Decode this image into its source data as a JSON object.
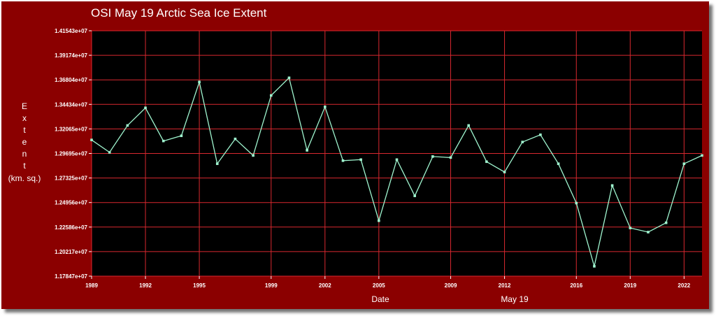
{
  "chart_data": {
    "type": "line",
    "title": "OSI May 19  Arctic Sea Ice Extent",
    "xlabel": "Date",
    "subtitle": "May 19",
    "ylabel_letters": [
      "E",
      "x",
      "t",
      "e",
      "n",
      "t"
    ],
    "ylabel_units": "(km. sq.)",
    "xlim": [
      1989,
      2023
    ],
    "ylim": [
      11784700,
      14154300
    ],
    "y_ticks": [
      11784700,
      12021700,
      12258600,
      12495600,
      12732500,
      12969500,
      13206500,
      13443400,
      13680400,
      13917400,
      14154300
    ],
    "y_tick_labels": [
      "1.17847e+07",
      "1.20217e+07",
      "1.22586e+07",
      "1.24956e+07",
      "1.27325e+07",
      "1.29695e+07",
      "1.32065e+07",
      "1.34434e+07",
      "1.36804e+07",
      "1.39174e+07",
      "1.41543e+07"
    ],
    "x_ticks": [
      1989,
      1992,
      1995,
      1999,
      2002,
      2005,
      2009,
      2012,
      2016,
      2019,
      2022
    ],
    "grid": true,
    "series_color": "#9ff5cf",
    "x": [
      1989,
      1990,
      1991,
      1992,
      1993,
      1994,
      1995,
      1996,
      1997,
      1998,
      1999,
      2000,
      2001,
      2002,
      2003,
      2004,
      2005,
      2006,
      2007,
      2008,
      2009,
      2010,
      2011,
      2012,
      2013,
      2014,
      2015,
      2016,
      2017,
      2018,
      2019,
      2020,
      2021,
      2022,
      2023
    ],
    "values": [
      13100000,
      12980000,
      13240000,
      13410000,
      13090000,
      13140000,
      13660000,
      12870000,
      13110000,
      12950000,
      13530000,
      13700000,
      13000000,
      13420000,
      12900000,
      12910000,
      12320000,
      12910000,
      12560000,
      12940000,
      12930000,
      13240000,
      12890000,
      12790000,
      13080000,
      13150000,
      12870000,
      12490000,
      11880000,
      12660000,
      12250000,
      12210000,
      12300000,
      12870000,
      12950000
    ]
  }
}
